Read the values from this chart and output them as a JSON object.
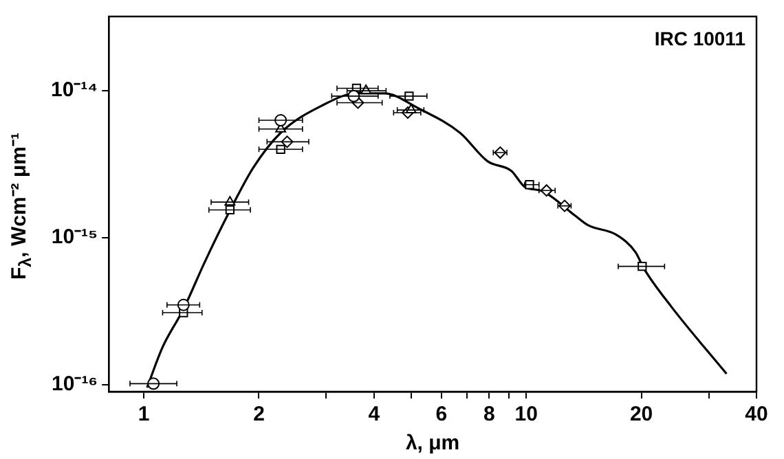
{
  "chart_data": {
    "type": "scatter",
    "xlabel": "λ, μm",
    "ylabel": "F$_{λ}$, Wcm⁻² μm⁻¹",
    "annotations": [
      "IRC 10011"
    ],
    "log": "xy",
    "xlim": [
      0.81,
      40
    ],
    "ylim": [
      9.1e-17,
      3.2e-14
    ],
    "xticks": [
      1,
      2,
      {
        "value": 3,
        "label": null
      },
      4,
      {
        "value": 5,
        "label": null
      },
      6,
      {
        "value": 7,
        "label": null
      },
      8,
      {
        "value": 9,
        "label": null
      },
      10,
      20,
      {
        "value": 30,
        "label": null
      },
      40
    ],
    "yticks": [
      {
        "value": 1e-16,
        "label": "10⁻¹⁶"
      },
      {
        "value": 1e-15,
        "label": "10⁻¹⁵"
      },
      {
        "value": 1e-14,
        "label": "10⁻¹⁴"
      }
    ],
    "series": [
      {
        "type": "line",
        "marker": "none",
        "color": "#000000",
        "x": [
          1.02,
          1.12,
          1.27,
          1.44,
          1.675,
          1.93,
          2.28,
          2.92,
          3.6,
          4.25,
          5.23,
          6.71,
          7.92,
          9.13,
          9.92,
          11.0,
          13.4,
          14.5,
          17.2,
          19.3,
          20.3,
          23.9,
          33.4
        ],
        "values": [
          9.6e-17,
          1.81e-16,
          3.28e-16,
          6.76e-16,
          1.51e-15,
          2.98e-15,
          5.18e-15,
          7.92e-15,
          9.6e-15,
          9.6e-15,
          7.59e-15,
          5.18e-15,
          3.32e-15,
          2.86e-15,
          2.22e-15,
          2.08e-15,
          1.42e-15,
          1.22e-15,
          1.05e-15,
          8e-16,
          6.2e-16,
          3.43e-16,
          1.19e-16
        ]
      },
      {
        "type": "scatter",
        "marker": "circle",
        "color": "#000000",
        "x": [
          1.06,
          1.27,
          2.28,
          3.54
        ],
        "values": [
          1.02e-16,
          3.5e-16,
          6.3e-15,
          9.2e-15
        ],
        "xerrors": [
          [
            0.92,
            1.22
          ],
          [
            1.15,
            1.4
          ],
          [
            2.0,
            2.6
          ],
          [
            3.1,
            4.1
          ]
        ]
      },
      {
        "type": "scatter",
        "marker": "triangle",
        "color": "#000000",
        "x": [
          1.68,
          2.28,
          3.81,
          5.0
        ],
        "values": [
          1.75e-15,
          5.5e-15,
          1e-14,
          7.4e-15
        ],
        "xerrors": [
          [
            1.5,
            1.88
          ],
          [
            2.0,
            2.6
          ],
          [
            3.4,
            4.3
          ],
          [
            4.6,
            5.4
          ]
        ]
      },
      {
        "type": "scatter",
        "marker": "diamond",
        "color": "#000000",
        "x": [
          2.37,
          3.63,
          4.9,
          8.55,
          11.3,
          12.6
        ],
        "values": [
          4.5e-15,
          8.3e-15,
          7.1e-15,
          3.8e-15,
          2.1e-15,
          1.65e-15
        ],
        "xerrors": [
          [
            2.1,
            2.7
          ],
          [
            3.2,
            4.2
          ],
          [
            4.5,
            5.3
          ],
          [
            8.2,
            8.9
          ],
          [
            10.8,
            11.9
          ],
          [
            12.1,
            13.1
          ]
        ]
      },
      {
        "type": "scatter",
        "marker": "square",
        "color": "#000000",
        "x": [
          1.27,
          1.68,
          2.28,
          3.6,
          4.94,
          10.2,
          20.1
        ],
        "values": [
          3.1e-16,
          1.55e-15,
          4e-15,
          1.04e-14,
          9.2e-15,
          2.3e-15,
          6.4e-16
        ],
        "xerrors": [
          [
            1.12,
            1.42
          ],
          [
            1.48,
            1.9
          ],
          [
            2.0,
            2.6
          ],
          [
            3.2,
            4.1
          ],
          [
            4.4,
            5.5
          ],
          [
            9.9,
            10.8
          ],
          [
            17.4,
            23.0
          ]
        ]
      }
    ]
  }
}
